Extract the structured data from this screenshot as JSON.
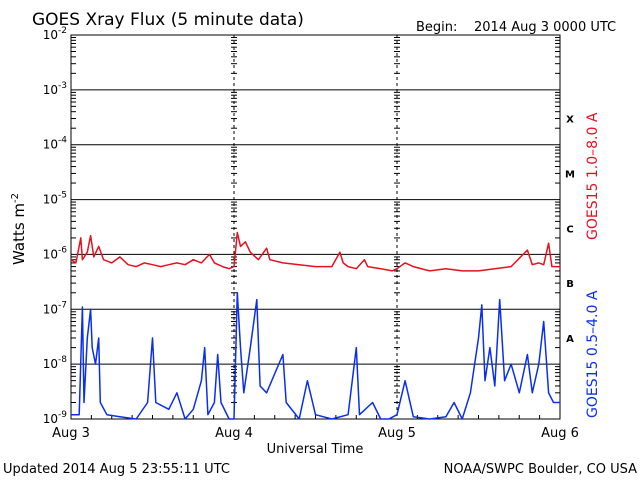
{
  "header": {
    "title": "GOES Xray Flux (5 minute data)",
    "begin_label": "Begin:",
    "begin_value": "2014 Aug 3 0000 UTC"
  },
  "footer": {
    "updated": "Updated 2014 Aug  5 23:55:11 UTC",
    "credit": "NOAA/SWPC Boulder, CO USA"
  },
  "chart_data": {
    "type": "line",
    "title": "GOES Xray Flux (5 minute data)",
    "xlabel": "Universal Time",
    "ylabel_base": "Watts m",
    "ylabel_exp": "-2",
    "y_scale": "log",
    "ylim": [
      1e-09,
      0.01
    ],
    "y_ticks": [
      {
        "exp": "-9",
        "value": 1e-09
      },
      {
        "exp": "-8",
        "value": 1e-08
      },
      {
        "exp": "-7",
        "value": 1e-07
      },
      {
        "exp": "-6",
        "value": 1e-06
      },
      {
        "exp": "-5",
        "value": 1e-05
      },
      {
        "exp": "-4",
        "value": 0.0001
      },
      {
        "exp": "-3",
        "value": 0.001
      },
      {
        "exp": "-2",
        "value": 0.01
      }
    ],
    "x_ticks": [
      "Aug 3",
      "Aug 4",
      "Aug 5",
      "Aug 6"
    ],
    "xlim_days": [
      0,
      3
    ],
    "grid": true,
    "flare_classes": [
      {
        "label": "X",
        "value": 0.0003
      },
      {
        "label": "M",
        "value": 3e-05
      },
      {
        "label": "C",
        "value": 3e-06
      },
      {
        "label": "B",
        "value": 3e-07
      },
      {
        "label": "A",
        "value": 3e-08
      }
    ],
    "series": [
      {
        "name": "GOES15 1.0–8.0 A",
        "color": "#e8101e",
        "points": [
          [
            0.0,
            8e-07
          ],
          [
            0.03,
            7e-07
          ],
          [
            0.06,
            2e-06
          ],
          [
            0.07,
            8e-07
          ],
          [
            0.1,
            1.1e-06
          ],
          [
            0.12,
            2.2e-06
          ],
          [
            0.14,
            9e-07
          ],
          [
            0.17,
            1.4e-06
          ],
          [
            0.2,
            8e-07
          ],
          [
            0.25,
            7e-07
          ],
          [
            0.3,
            9e-07
          ],
          [
            0.35,
            6.5e-07
          ],
          [
            0.4,
            6e-07
          ],
          [
            0.45,
            7e-07
          ],
          [
            0.5,
            6.5e-07
          ],
          [
            0.55,
            6e-07
          ],
          [
            0.6,
            6.5e-07
          ],
          [
            0.65,
            7e-07
          ],
          [
            0.7,
            6.5e-07
          ],
          [
            0.75,
            8e-07
          ],
          [
            0.8,
            7e-07
          ],
          [
            0.85,
            1e-06
          ],
          [
            0.88,
            7e-07
          ],
          [
            0.93,
            6e-07
          ],
          [
            0.97,
            5.5e-07
          ],
          [
            1.0,
            6e-07
          ],
          [
            1.02,
            2.5e-06
          ],
          [
            1.04,
            1.4e-06
          ],
          [
            1.07,
            1.7e-06
          ],
          [
            1.1,
            1.1e-06
          ],
          [
            1.15,
            8e-07
          ],
          [
            1.2,
            1.3e-06
          ],
          [
            1.22,
            8e-07
          ],
          [
            1.3,
            7e-07
          ],
          [
            1.4,
            6.5e-07
          ],
          [
            1.5,
            6e-07
          ],
          [
            1.6,
            6e-07
          ],
          [
            1.65,
            1.1e-06
          ],
          [
            1.67,
            7e-07
          ],
          [
            1.7,
            6e-07
          ],
          [
            1.75,
            5.5e-07
          ],
          [
            1.8,
            8e-07
          ],
          [
            1.82,
            6e-07
          ],
          [
            1.9,
            5.5e-07
          ],
          [
            1.97,
            5e-07
          ],
          [
            2.0,
            5.5e-07
          ],
          [
            2.05,
            7e-07
          ],
          [
            2.1,
            6e-07
          ],
          [
            2.2,
            5e-07
          ],
          [
            2.3,
            5.5e-07
          ],
          [
            2.4,
            5e-07
          ],
          [
            2.5,
            5e-07
          ],
          [
            2.6,
            5.5e-07
          ],
          [
            2.7,
            6e-07
          ],
          [
            2.8,
            1.2e-06
          ],
          [
            2.83,
            6.5e-07
          ],
          [
            2.87,
            7e-07
          ],
          [
            2.9,
            6.5e-07
          ],
          [
            2.93,
            1.6e-06
          ],
          [
            2.95,
            6e-07
          ],
          [
            3.0,
            6e-07
          ]
        ]
      },
      {
        "name": "GOES15 0.5–4.0 A",
        "color": "#0a2ef0",
        "points": [
          [
            0.0,
            1.2e-09
          ],
          [
            0.05,
            1.2e-09
          ],
          [
            0.07,
            1.1e-07
          ],
          [
            0.08,
            2e-09
          ],
          [
            0.1,
            3e-08
          ],
          [
            0.12,
            1e-07
          ],
          [
            0.13,
            2e-08
          ],
          [
            0.15,
            1e-08
          ],
          [
            0.17,
            3e-08
          ],
          [
            0.18,
            2e-09
          ],
          [
            0.22,
            1.2e-09
          ],
          [
            0.3,
            1.1e-09
          ],
          [
            0.4,
            1e-09
          ],
          [
            0.47,
            2e-09
          ],
          [
            0.5,
            3e-08
          ],
          [
            0.52,
            2e-09
          ],
          [
            0.6,
            1.5e-09
          ],
          [
            0.65,
            3e-09
          ],
          [
            0.7,
            1e-09
          ],
          [
            0.75,
            1.5e-09
          ],
          [
            0.8,
            5e-09
          ],
          [
            0.82,
            2e-08
          ],
          [
            0.84,
            1.2e-09
          ],
          [
            0.88,
            2e-09
          ],
          [
            0.9,
            1.5e-08
          ],
          [
            0.92,
            2e-09
          ],
          [
            0.97,
            1e-09
          ],
          [
            1.0,
            1e-09
          ],
          [
            1.02,
            2e-07
          ],
          [
            1.04,
            2e-08
          ],
          [
            1.06,
            3e-09
          ],
          [
            1.1,
            2e-08
          ],
          [
            1.14,
            1.5e-07
          ],
          [
            1.16,
            4e-09
          ],
          [
            1.2,
            3e-09
          ],
          [
            1.3,
            1.5e-08
          ],
          [
            1.32,
            2e-09
          ],
          [
            1.4,
            1e-09
          ],
          [
            1.45,
            5e-09
          ],
          [
            1.5,
            1.2e-09
          ],
          [
            1.6,
            1e-09
          ],
          [
            1.7,
            1.2e-09
          ],
          [
            1.75,
            2e-08
          ],
          [
            1.77,
            1.2e-09
          ],
          [
            1.85,
            2e-09
          ],
          [
            1.9,
            1e-09
          ],
          [
            1.95,
            1e-09
          ],
          [
            2.0,
            1.2e-09
          ],
          [
            2.05,
            5e-09
          ],
          [
            2.1,
            1.1e-09
          ],
          [
            2.2,
            1e-09
          ],
          [
            2.3,
            1.1e-09
          ],
          [
            2.35,
            2e-09
          ],
          [
            2.4,
            1e-09
          ],
          [
            2.45,
            3e-09
          ],
          [
            2.5,
            3e-08
          ],
          [
            2.52,
            1.2e-07
          ],
          [
            2.54,
            5e-09
          ],
          [
            2.57,
            2e-08
          ],
          [
            2.6,
            4e-09
          ],
          [
            2.63,
            1.5e-07
          ],
          [
            2.66,
            5e-09
          ],
          [
            2.7,
            1e-08
          ],
          [
            2.75,
            3e-09
          ],
          [
            2.8,
            1.5e-08
          ],
          [
            2.83,
            3e-09
          ],
          [
            2.87,
            1e-08
          ],
          [
            2.9,
            6e-08
          ],
          [
            2.93,
            3e-09
          ],
          [
            2.96,
            2e-09
          ],
          [
            3.0,
            2e-09
          ]
        ]
      }
    ]
  }
}
